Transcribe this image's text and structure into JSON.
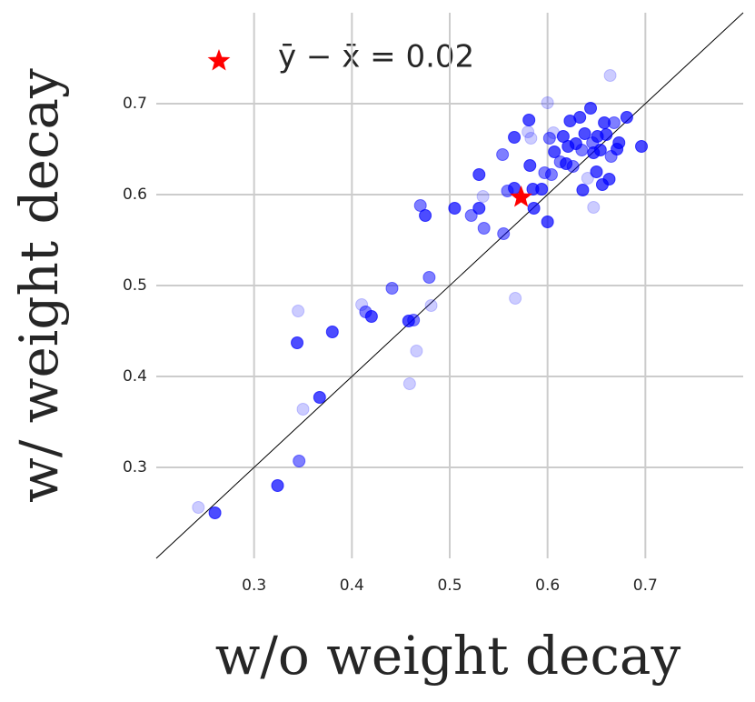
{
  "chart_data": {
    "type": "scatter",
    "x_label": "w/o weight decay",
    "y_label": "w/ weight decay",
    "legend_label": "ȳ − x̄ = 0.02",
    "color": "#0000ff",
    "x": [
      0.243,
      0.26,
      0.324,
      0.346,
      0.35,
      0.367,
      0.344,
      0.345,
      0.38,
      0.41,
      0.414,
      0.42,
      0.441,
      0.458,
      0.463,
      0.459,
      0.466,
      0.481,
      0.479,
      0.47,
      0.475,
      0.505,
      0.522,
      0.53,
      0.53,
      0.534,
      0.535,
      0.555,
      0.554,
      0.559,
      0.567,
      0.566,
      0.566,
      0.58,
      0.581,
      0.582,
      0.583,
      0.585,
      0.586,
      0.594,
      0.597,
      0.6,
      0.6,
      0.602,
      0.604,
      0.606,
      0.607,
      0.613,
      0.616,
      0.619,
      0.621,
      0.623,
      0.626,
      0.629,
      0.633,
      0.636,
      0.638,
      0.641,
      0.644,
      0.646,
      0.647,
      0.647,
      0.65,
      0.651,
      0.654,
      0.656,
      0.658,
      0.66,
      0.663,
      0.664,
      0.665,
      0.668,
      0.671,
      0.673,
      0.681,
      0.696,
      0.635
    ],
    "y": [
      0.256,
      0.25,
      0.28,
      0.307,
      0.364,
      0.377,
      0.437,
      0.472,
      0.449,
      0.479,
      0.471,
      0.466,
      0.497,
      0.461,
      0.462,
      0.392,
      0.428,
      0.478,
      0.509,
      0.588,
      0.577,
      0.585,
      0.577,
      0.585,
      0.622,
      0.598,
      0.563,
      0.557,
      0.644,
      0.604,
      0.486,
      0.607,
      0.663,
      0.669,
      0.682,
      0.632,
      0.662,
      0.606,
      0.585,
      0.606,
      0.624,
      0.701,
      0.57,
      0.662,
      0.622,
      0.668,
      0.647,
      0.636,
      0.664,
      0.634,
      0.653,
      0.681,
      0.631,
      0.656,
      0.685,
      0.605,
      0.667,
      0.618,
      0.695,
      0.657,
      0.586,
      0.646,
      0.625,
      0.664,
      0.649,
      0.611,
      0.679,
      0.666,
      0.617,
      0.731,
      0.642,
      0.679,
      0.65,
      0.657,
      0.685,
      0.653,
      0.649
    ],
    "opacities": [
      0.2,
      0.7,
      0.7,
      0.5,
      0.2,
      0.7,
      0.7,
      0.2,
      0.7,
      0.2,
      0.5,
      0.7,
      0.5,
      0.7,
      0.5,
      0.2,
      0.2,
      0.2,
      0.5,
      0.5,
      0.7,
      0.7,
      0.5,
      0.7,
      0.7,
      0.2,
      0.5,
      0.5,
      0.5,
      0.5,
      0.2,
      0.7,
      0.7,
      0.2,
      0.7,
      0.7,
      0.2,
      0.7,
      0.7,
      0.7,
      0.5,
      0.2,
      0.7,
      0.5,
      0.5,
      0.2,
      0.7,
      0.5,
      0.7,
      0.7,
      0.7,
      0.7,
      0.5,
      0.7,
      0.7,
      0.7,
      0.7,
      0.2,
      0.7,
      0.5,
      0.2,
      0.7,
      0.7,
      0.7,
      0.7,
      0.7,
      0.7,
      0.7,
      0.7,
      0.2,
      0.5,
      0.5,
      0.7,
      0.7,
      0.7,
      0.7,
      0.5
    ],
    "mean": {
      "x": 0.573,
      "y": 0.597,
      "color": "#ff0000"
    },
    "xlim": [
      0.2,
      0.8
    ],
    "ylim": [
      0.2,
      0.8
    ],
    "xticks": [
      0.3,
      0.4,
      0.5,
      0.6,
      0.7
    ],
    "yticks": [
      0.3,
      0.4,
      0.5,
      0.6,
      0.7
    ],
    "grid": true
  }
}
